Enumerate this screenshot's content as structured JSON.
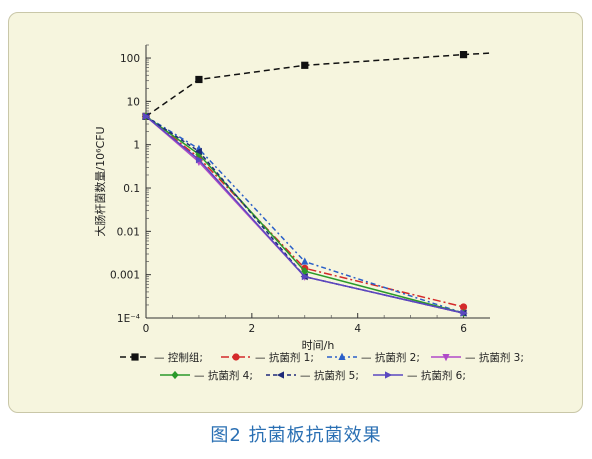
{
  "chart_data": {
    "type": "line",
    "xlabel": "时间/h",
    "ylabel": "大肠杆菌数量/10⁶CFU",
    "yscale": "log",
    "xlim": [
      0,
      6.5
    ],
    "ylim": [
      0.0001,
      200
    ],
    "xticks": [
      0,
      2,
      4,
      6
    ],
    "yticks": [
      {
        "value": 0.0001,
        "label": "1E⁻⁴"
      },
      {
        "value": 0.001,
        "label": "0.001"
      },
      {
        "value": 0.01,
        "label": "0.01"
      },
      {
        "value": 0.1,
        "label": "0.1"
      },
      {
        "value": 1,
        "label": "1"
      },
      {
        "value": 10,
        "label": "10"
      },
      {
        "value": 100,
        "label": "100"
      }
    ],
    "legend_position": "bottom",
    "series": [
      {
        "name": "— 控制组;",
        "color": "#111111",
        "dash": "6,4",
        "marker": "square",
        "x": [
          0,
          1,
          3,
          6,
          6.5
        ],
        "y": [
          4.5,
          32,
          68,
          120,
          130
        ],
        "markers": [
          true,
          true,
          true,
          true,
          false
        ]
      },
      {
        "name": "— 抗菌剂 1;",
        "color": "#d42a2a",
        "dash": "8,3,2,3",
        "marker": "circle",
        "x": [
          0,
          1,
          3,
          6
        ],
        "y": [
          4.5,
          0.5,
          0.0014,
          0.00018
        ],
        "markers": [
          true,
          true,
          true,
          true
        ]
      },
      {
        "name": "— 抗菌剂 2;",
        "color": "#2a5fc8",
        "dash": "5,3,2,3",
        "marker": "triangle-up",
        "x": [
          0,
          1,
          3,
          6
        ],
        "y": [
          4.5,
          0.8,
          0.002,
          0.00013
        ],
        "markers": [
          true,
          true,
          true,
          true
        ]
      },
      {
        "name": "— 抗菌剂 3;",
        "color": "#b04ac8",
        "dash": "",
        "marker": "triangle-down",
        "x": [
          0,
          1,
          3,
          6
        ],
        "y": [
          4.5,
          0.4,
          0.0009,
          0.00013
        ],
        "markers": [
          true,
          true,
          true,
          true
        ]
      },
      {
        "name": "— 抗菌剂 4;",
        "color": "#2a9a2a",
        "dash": "",
        "marker": "diamond",
        "x": [
          0,
          1,
          3,
          6
        ],
        "y": [
          4.5,
          0.6,
          0.0012,
          0.00013
        ],
        "markers": [
          true,
          true,
          true,
          true
        ]
      },
      {
        "name": "— 抗菌剂 5;",
        "color": "#1e2a7a",
        "dash": "4,3",
        "marker": "triangle-left",
        "x": [
          0,
          1,
          3,
          6
        ],
        "y": [
          4.5,
          0.7,
          0.0009,
          0.00013
        ],
        "markers": [
          true,
          true,
          true,
          true
        ]
      },
      {
        "name": "— 抗菌剂 6;",
        "color": "#5a48c0",
        "dash": "",
        "marker": "triangle-right",
        "x": [
          0,
          1,
          3,
          6
        ],
        "y": [
          4.5,
          0.45,
          0.0009,
          0.00013
        ],
        "markers": [
          true,
          true,
          true,
          true
        ]
      }
    ]
  },
  "caption": "图2 抗菌板抗菌效果"
}
